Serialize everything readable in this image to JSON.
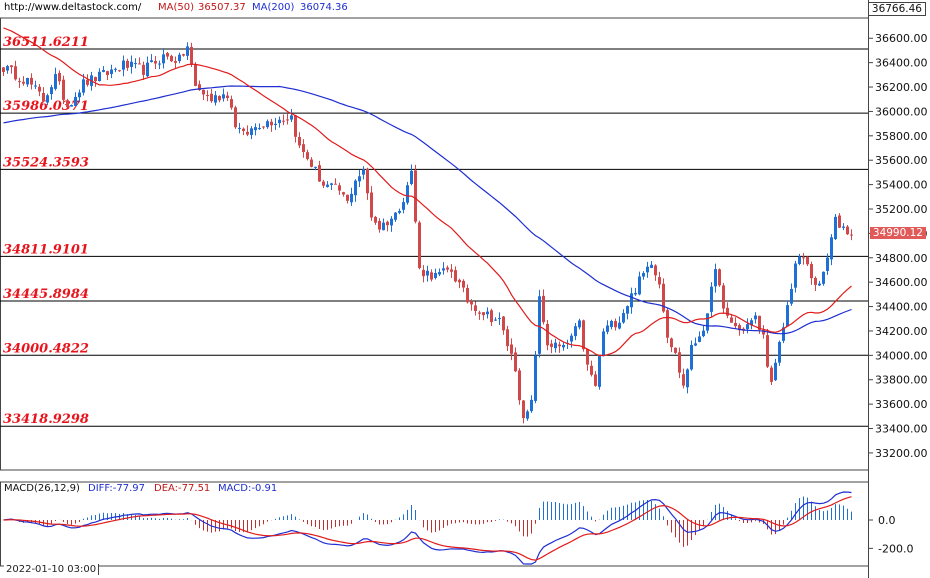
{
  "header": {
    "site": "http://www.deltastock.com/",
    "ma50_label": "MA(50)",
    "ma50_value": "36507.37",
    "ma200_label": "MA(200)",
    "ma200_value": "36074.36",
    "top_price": "36766.46"
  },
  "macd_header": {
    "name": "MACD(26,12,9)",
    "diff": "DIFF:-77.97",
    "dea": "DEA:-77.51",
    "macd": "MACD:-0.91"
  },
  "date_label": "2022-01-10 03:00",
  "current_price": "34990.12",
  "colors": {
    "up": "#1e6fd6",
    "down": "#d0484a",
    "ma50": "#e11b1b",
    "ma200": "#1f2fd1",
    "sr_line": "#000000",
    "sr_label": "#e8141c",
    "macd_up": "#1e6fd6",
    "macd_down": "#c03030"
  },
  "chart_data": [
    {
      "type": "candlestick",
      "title": "",
      "ylim": [
        33060,
        36766
      ],
      "yticks": [
        "36600.00",
        "36400.00",
        "36200.00",
        "36000.00",
        "35800.00",
        "35600.00",
        "35400.00",
        "35200.00",
        "35000.00",
        "34800.00",
        "34600.00",
        "34400.00",
        "34200.00",
        "34000.00",
        "33800.00",
        "33600.00",
        "33400.00",
        "33200.00"
      ],
      "support_resistance": [
        36511.6211,
        35986.0371,
        35524.3593,
        34811.9101,
        34445.8984,
        34000.4822,
        33418.9298
      ],
      "support_resistance_labels": [
        "36511.6211",
        "35986.0371",
        "35524.3593",
        "34811.9101",
        "34445.8984",
        "34000.4822",
        "33418.9298"
      ],
      "anchors": [
        [
          0,
          36360
        ],
        [
          6,
          36250
        ],
        [
          10,
          36100
        ],
        [
          13,
          36280
        ],
        [
          16,
          36050
        ],
        [
          20,
          36230
        ],
        [
          25,
          36300
        ],
        [
          30,
          36380
        ],
        [
          35,
          36340
        ],
        [
          40,
          36450
        ],
        [
          44,
          36420
        ],
        [
          46,
          36530
        ],
        [
          48,
          36200
        ],
        [
          52,
          36100
        ],
        [
          56,
          36150
        ],
        [
          58,
          35900
        ],
        [
          60,
          35800
        ],
        [
          64,
          35900
        ],
        [
          68,
          35930
        ],
        [
          72,
          35960
        ],
        [
          74,
          35700
        ],
        [
          76,
          35620
        ],
        [
          80,
          35400
        ],
        [
          84,
          35350
        ],
        [
          86,
          35250
        ],
        [
          88,
          35450
        ],
        [
          90,
          35500
        ],
        [
          92,
          35150
        ],
        [
          94,
          35050
        ],
        [
          98,
          35150
        ],
        [
          100,
          35300
        ],
        [
          102,
          35500
        ],
        [
          104,
          34700
        ],
        [
          108,
          34650
        ],
        [
          112,
          34700
        ],
        [
          116,
          34450
        ],
        [
          120,
          34350
        ],
        [
          124,
          34280
        ],
        [
          128,
          33900
        ],
        [
          130,
          33450
        ],
        [
          132,
          33600
        ],
        [
          134,
          34450
        ],
        [
          136,
          34100
        ],
        [
          140,
          34050
        ],
        [
          144,
          34250
        ],
        [
          146,
          33900
        ],
        [
          148,
          33750
        ],
        [
          150,
          34200
        ],
        [
          154,
          34300
        ],
        [
          158,
          34550
        ],
        [
          162,
          34780
        ],
        [
          164,
          34600
        ],
        [
          166,
          34180
        ],
        [
          168,
          34000
        ],
        [
          170,
          33750
        ],
        [
          172,
          34050
        ],
        [
          176,
          34300
        ],
        [
          178,
          34750
        ],
        [
          180,
          34350
        ],
        [
          184,
          34200
        ],
        [
          188,
          34300
        ],
        [
          190,
          34150
        ],
        [
          192,
          33750
        ],
        [
          196,
          34400
        ],
        [
          198,
          34750
        ],
        [
          200,
          34800
        ],
        [
          202,
          34650
        ],
        [
          204,
          34550
        ],
        [
          206,
          34800
        ],
        [
          208,
          35100
        ],
        [
          210,
          35050
        ],
        [
          212,
          34990
        ]
      ],
      "ma50_value": "36507.37",
      "ma200_value": "36074.36",
      "current_price": 34990.12
    },
    {
      "type": "bar",
      "title": "MACD(26,12,9)",
      "series": [
        {
          "name": "DIFF",
          "value": -77.97
        },
        {
          "name": "DEA",
          "value": -77.51
        },
        {
          "name": "MACD",
          "value": -0.91
        }
      ],
      "yticks": [
        "0.0",
        "-200.0"
      ],
      "ylim": [
        -330,
        220
      ]
    }
  ]
}
